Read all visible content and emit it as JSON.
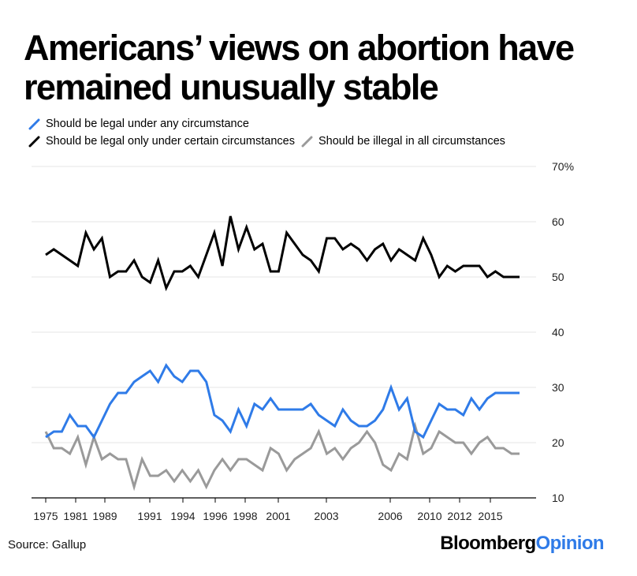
{
  "title": "Americans’ views on abortion have remained unusually stable",
  "source": "Source: Gallup",
  "brand": {
    "first": "Bloomberg",
    "second": "Opinion"
  },
  "colors": {
    "legal_any": "#2f7be8",
    "legal_certain": "#000000",
    "illegal_all": "#9a9a9a",
    "brand_accent": "#2f7be8"
  },
  "chart_data": {
    "type": "line",
    "ylim": [
      10,
      70
    ],
    "yticks": [
      10,
      20,
      30,
      40,
      50,
      60,
      70
    ],
    "ytick_labels": [
      "10",
      "20",
      "30",
      "40",
      "50",
      "60",
      "70%"
    ],
    "x_tick_labels": [
      "1975",
      "1981",
      "1989",
      "1991",
      "1994",
      "1996",
      "1998",
      "2001",
      "2003",
      "2006",
      "2010",
      "2012",
      "2015"
    ],
    "grid": true,
    "legend_position": "top-left",
    "series": [
      {
        "name": "Should be legal under any circumstance",
        "values": [
          21,
          22,
          22,
          25,
          23,
          23,
          21,
          24,
          27,
          29,
          29,
          31,
          32,
          33,
          31,
          34,
          32,
          31,
          33,
          33,
          31,
          25,
          24,
          22,
          26,
          23,
          27,
          26,
          28,
          26,
          26,
          26,
          26,
          27,
          25,
          24,
          23,
          26,
          24,
          23,
          23,
          24,
          26,
          30,
          26,
          28,
          22,
          21,
          24,
          27,
          26,
          26,
          25,
          28,
          26,
          28,
          29,
          29,
          29,
          29
        ]
      },
      {
        "name": "Should be legal only under certain circumstances",
        "values": [
          54,
          55,
          54,
          53,
          52,
          58,
          55,
          57,
          50,
          51,
          51,
          53,
          50,
          49,
          53,
          48,
          51,
          51,
          52,
          50,
          54,
          58,
          52,
          61,
          55,
          59,
          55,
          56,
          51,
          51,
          58,
          56,
          54,
          53,
          51,
          57,
          57,
          55,
          56,
          55,
          53,
          55,
          56,
          53,
          55,
          54,
          53,
          57,
          54,
          50,
          52,
          51,
          52,
          52,
          52,
          50,
          51,
          50,
          50,
          50
        ]
      },
      {
        "name": "Should be illegal in all circumstances",
        "values": [
          22,
          19,
          19,
          18,
          21,
          16,
          21,
          17,
          18,
          17,
          17,
          12,
          17,
          14,
          14,
          15,
          13,
          15,
          13,
          15,
          12,
          15,
          17,
          15,
          17,
          17,
          16,
          15,
          19,
          18,
          15,
          17,
          18,
          19,
          22,
          18,
          19,
          17,
          19,
          20,
          22,
          20,
          16,
          15,
          18,
          17,
          23,
          18,
          19,
          22,
          21,
          20,
          20,
          18,
          20,
          21,
          19,
          19,
          18,
          18
        ]
      }
    ]
  }
}
